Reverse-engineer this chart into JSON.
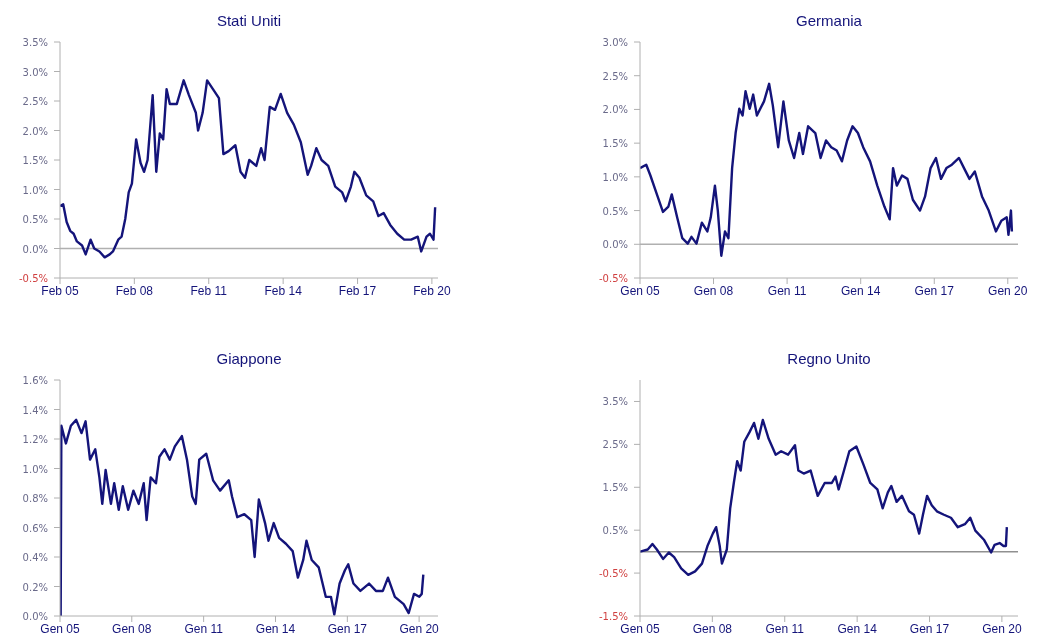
{
  "chart_data": [
    {
      "type": "line",
      "title": "Stati Uniti",
      "color": "#14147a",
      "marker": "none",
      "line_style": "solid",
      "grid": false,
      "x": [
        "2005-02-01",
        "2005-03-20",
        "2005-05-10",
        "2005-07-01",
        "2005-08-21",
        "2005-10-08",
        "2005-12-23",
        "2006-02-14",
        "2006-04-28",
        "2006-06-20",
        "2006-09-05",
        "2006-11-21",
        "2007-02-03",
        "2007-03-23",
        "2007-06-09",
        "2007-07-28",
        "2007-09-20",
        "2007-11-10",
        "2007-12-27",
        "2008-02-28",
        "2008-05-03",
        "2008-06-23",
        "2008-08-14",
        "2008-10-28",
        "2008-12-20",
        "2009-02-10",
        "2009-04-01",
        "2009-05-21",
        "2009-07-08",
        "2009-10-19",
        "2010-01-28",
        "2010-04-15",
        "2010-07-26",
        "2010-08-28",
        "2010-11-03",
        "2011-01-08",
        "2011-04-04",
        "2011-07-01",
        "2011-09-05",
        "2011-11-21",
        "2012-02-28",
        "2012-05-14",
        "2012-07-19",
        "2012-09-20",
        "2013-01-01",
        "2013-03-13",
        "2013-05-03",
        "2013-07-19",
        "2013-10-04",
        "2013-12-27",
        "2014-04-01",
        "2014-07-08",
        "2014-10-19",
        "2015-01-28",
        "2015-03-20",
        "2015-06-05",
        "2015-08-21",
        "2015-11-28",
        "2016-03-09",
        "2016-06-20",
        "2016-08-10",
        "2016-10-26",
        "2016-12-16",
        "2017-02-28",
        "2017-06-09",
        "2017-09-20",
        "2017-12-05",
        "2018-02-21",
        "2018-05-28",
        "2018-09-09",
        "2018-12-20",
        "2019-04-01",
        "2019-07-08",
        "2019-08-28",
        "2019-11-14",
        "2020-01-04",
        "2020-02-25",
        "2020-03-20"
      ],
      "values": [
        0.72,
        0.75,
        0.45,
        0.3,
        0.25,
        0.12,
        0.05,
        -0.1,
        0.15,
        0.0,
        -0.05,
        -0.15,
        -0.1,
        -0.05,
        0.15,
        0.2,
        0.5,
        0.95,
        1.1,
        1.85,
        1.45,
        1.3,
        1.5,
        2.6,
        1.3,
        1.95,
        1.85,
        2.7,
        2.45,
        2.45,
        2.85,
        2.6,
        2.3,
        2.0,
        2.3,
        2.85,
        2.7,
        2.55,
        1.6,
        1.65,
        1.75,
        1.3,
        1.2,
        1.5,
        1.4,
        1.7,
        1.5,
        2.4,
        2.35,
        2.62,
        2.3,
        2.1,
        1.8,
        1.25,
        1.4,
        1.7,
        1.5,
        1.4,
        1.05,
        0.95,
        0.8,
        1.05,
        1.3,
        1.2,
        0.9,
        0.8,
        0.55,
        0.6,
        0.4,
        0.25,
        0.15,
        0.15,
        0.2,
        -0.05,
        0.2,
        0.25,
        0.15,
        0.7
      ],
      "xlim": [
        "2005-02-01",
        "2020-05-01"
      ],
      "xticks": [
        {
          "value": "2005-02-01",
          "label": "Feb 05"
        },
        {
          "value": "2008-02-01",
          "label": "Feb 08"
        },
        {
          "value": "2011-02-01",
          "label": "Feb 11"
        },
        {
          "value": "2014-02-01",
          "label": "Feb 14"
        },
        {
          "value": "2017-02-01",
          "label": "Feb 17"
        },
        {
          "value": "2020-02-01",
          "label": "Feb 20"
        }
      ],
      "ylim": [
        -0.5,
        3.5
      ],
      "yticks": [
        {
          "value": -0.5,
          "label": "-0.5%"
        },
        {
          "value": 0,
          "label": "0.0%"
        },
        {
          "value": 0.5,
          "label": "0.5%"
        },
        {
          "value": 1,
          "label": "1.0%"
        },
        {
          "value": 1.5,
          "label": "1.5%"
        },
        {
          "value": 2,
          "label": "2.0%"
        },
        {
          "value": 2.5,
          "label": "2.5%"
        },
        {
          "value": 3,
          "label": "3.0%"
        },
        {
          "value": 3.5,
          "label": "3.5%"
        }
      ],
      "ref_lines": [
        {
          "axis": "y",
          "value": 0,
          "color": "#b0b0b0"
        }
      ]
    },
    {
      "type": "line",
      "title": "Germania",
      "color": "#14147a",
      "marker": "none",
      "line_style": "solid",
      "grid": false,
      "x": [
        "2005-01-01",
        "2005-04-04",
        "2005-06-05",
        "2005-09-20",
        "2005-12-09",
        "2006-02-28",
        "2006-04-19",
        "2006-07-08",
        "2006-09-23",
        "2006-12-13",
        "2007-02-07",
        "2007-04-22",
        "2007-07-11",
        "2007-10-01",
        "2007-11-21",
        "2008-01-22",
        "2008-03-05",
        "2008-04-26",
        "2008-06-20",
        "2008-08-10",
        "2008-10-04",
        "2008-11-25",
        "2009-01-19",
        "2009-03-09",
        "2009-04-22",
        "2009-06-23",
        "2009-08-14",
        "2009-10-08",
        "2010-01-22",
        "2010-04-08",
        "2010-06-02",
        "2010-08-21",
        "2010-11-07",
        "2011-01-26",
        "2011-04-15",
        "2011-07-01",
        "2011-08-25",
        "2011-11-10",
        "2012-02-25",
        "2012-05-14",
        "2012-08-03",
        "2012-10-19",
        "2013-01-08",
        "2013-03-27",
        "2013-06-13",
        "2013-09-02",
        "2013-11-21",
        "2014-02-07",
        "2014-05-21",
        "2014-09-05",
        "2014-12-20",
        "2015-03-09",
        "2015-04-28",
        "2015-06-23",
        "2015-09-09",
        "2015-11-28",
        "2016-02-17",
        "2016-06-02",
        "2016-08-17",
        "2016-11-07",
        "2017-01-26",
        "2017-04-11",
        "2017-07-01",
        "2017-09-20",
        "2018-01-04",
        "2018-03-20",
        "2018-06-09",
        "2018-08-28",
        "2018-12-13",
        "2019-03-23",
        "2019-07-08",
        "2019-09-27",
        "2019-12-16",
        "2020-01-11",
        "2020-02-17",
        "2020-03-02"
      ],
      "values": [
        1.13,
        1.18,
        1.02,
        0.71,
        0.48,
        0.56,
        0.74,
        0.4,
        0.09,
        0.01,
        0.11,
        0.01,
        0.32,
        0.19,
        0.4,
        0.87,
        0.5,
        -0.17,
        0.19,
        0.09,
        1.13,
        1.65,
        2.01,
        1.91,
        2.27,
        2.01,
        2.22,
        1.91,
        2.12,
        2.38,
        2.06,
        1.44,
        2.12,
        1.54,
        1.28,
        1.65,
        1.34,
        1.75,
        1.65,
        1.28,
        1.54,
        1.44,
        1.39,
        1.23,
        1.54,
        1.75,
        1.65,
        1.44,
        1.23,
        0.87,
        0.56,
        0.37,
        1.13,
        0.87,
        1.02,
        0.97,
        0.66,
        0.5,
        0.71,
        1.13,
        1.28,
        0.97,
        1.13,
        1.18,
        1.28,
        1.13,
        0.97,
        1.08,
        0.71,
        0.5,
        0.19,
        0.35,
        0.4,
        0.14,
        0.5,
        0.19
      ],
      "xlim": [
        "2005-01-01",
        "2020-06-01"
      ],
      "xticks": [
        {
          "value": "2005-01-01",
          "label": "Gen 05"
        },
        {
          "value": "2008-01-01",
          "label": "Gen 08"
        },
        {
          "value": "2011-01-01",
          "label": "Gen 11"
        },
        {
          "value": "2014-01-01",
          "label": "Gen 14"
        },
        {
          "value": "2017-01-01",
          "label": "Gen 17"
        },
        {
          "value": "2020-01-01",
          "label": "Gen 20"
        }
      ],
      "ylim": [
        -0.5,
        3.0
      ],
      "yticks": [
        {
          "value": -0.5,
          "label": "-0.5%"
        },
        {
          "value": 0,
          "label": "0.0%"
        },
        {
          "value": 0.5,
          "label": "0.5%"
        },
        {
          "value": 1,
          "label": "1.0%"
        },
        {
          "value": 1.5,
          "label": "1.5%"
        },
        {
          "value": 2,
          "label": "2.0%"
        },
        {
          "value": 2.5,
          "label": "2.5%"
        },
        {
          "value": 3,
          "label": "3.0%"
        }
      ],
      "ref_lines": [
        {
          "axis": "y",
          "value": 0,
          "color": "#b0b0b0"
        }
      ]
    },
    {
      "type": "line",
      "title": "Giappone",
      "color": "#14147a",
      "marker": "none",
      "line_style": "solid",
      "grid": false,
      "x": [
        "2005-01-11",
        "2005-01-22",
        "2005-04-01",
        "2005-06-16",
        "2005-09-05",
        "2005-11-25",
        "2006-01-26",
        "2006-04-04",
        "2006-06-23",
        "2006-08-25",
        "2006-10-08",
        "2006-11-28",
        "2007-02-17",
        "2007-04-08",
        "2007-06-16",
        "2007-08-17",
        "2007-11-07",
        "2008-01-26",
        "2008-04-15",
        "2008-07-01",
        "2008-08-14",
        "2008-10-15",
        "2009-01-04",
        "2009-02-25",
        "2009-05-14",
        "2009-08-03",
        "2009-10-19",
        "2010-02-03",
        "2010-04-22",
        "2010-07-11",
        "2010-09-02",
        "2010-10-26",
        "2011-02-10",
        "2011-05-25",
        "2011-09-09",
        "2012-01-19",
        "2012-03-09",
        "2012-05-28",
        "2012-09-13",
        "2012-12-27",
        "2013-02-17",
        "2013-04-22",
        "2013-07-26",
        "2013-09-16",
        "2013-12-05",
        "2014-02-25",
        "2014-06-09",
        "2014-09-20",
        "2014-12-09",
        "2015-02-28",
        "2015-04-19",
        "2015-07-08",
        "2015-10-22",
        "2016-02-07",
        "2016-04-26",
        "2016-06-16",
        "2016-09-05",
        "2016-11-25",
        "2017-01-15",
        "2017-04-04",
        "2017-07-19",
        "2017-11-28",
        "2018-03-13",
        "2018-06-27",
        "2018-09-13",
        "2018-12-27",
        "2019-05-10",
        "2019-07-26",
        "2019-10-15",
        "2020-01-04",
        "2020-02-10",
        "2020-03-05"
      ],
      "values": [
        0.0,
        1.29,
        1.17,
        1.29,
        1.33,
        1.24,
        1.32,
        1.06,
        1.13,
        0.94,
        0.76,
        0.99,
        0.76,
        0.9,
        0.72,
        0.88,
        0.72,
        0.85,
        0.76,
        0.9,
        0.65,
        0.94,
        0.9,
        1.08,
        1.13,
        1.06,
        1.15,
        1.22,
        1.06,
        0.81,
        0.76,
        1.06,
        1.1,
        0.92,
        0.85,
        0.92,
        0.81,
        0.67,
        0.69,
        0.65,
        0.4,
        0.79,
        0.63,
        0.51,
        0.63,
        0.53,
        0.49,
        0.44,
        0.26,
        0.38,
        0.51,
        0.38,
        0.33,
        0.13,
        0.13,
        0.01,
        0.22,
        0.31,
        0.35,
        0.22,
        0.17,
        0.22,
        0.17,
        0.17,
        0.26,
        0.13,
        0.08,
        0.02,
        0.15,
        0.13,
        0.15,
        0.28
      ],
      "xlim": [
        "2005-01-01",
        "2020-10-15"
      ],
      "xticks": [
        {
          "value": "2005-01-01",
          "label": "Gen 05"
        },
        {
          "value": "2008-01-01",
          "label": "Gen 08"
        },
        {
          "value": "2011-01-01",
          "label": "Gen 11"
        },
        {
          "value": "2014-01-01",
          "label": "Gen 14"
        },
        {
          "value": "2017-01-01",
          "label": "Gen 17"
        },
        {
          "value": "2020-01-01",
          "label": "Gen 20"
        }
      ],
      "ylim": [
        0,
        1.6
      ],
      "yticks": [
        {
          "value": 0,
          "label": "0.0%"
        },
        {
          "value": 0.2,
          "label": "0.2%"
        },
        {
          "value": 0.4,
          "label": "0.4%"
        },
        {
          "value": 0.6,
          "label": "0.6%"
        },
        {
          "value": 0.8,
          "label": "0.8%"
        },
        {
          "value": 1,
          "label": "1.0%"
        },
        {
          "value": 1.2,
          "label": "1.2%"
        },
        {
          "value": 1.4,
          "label": "1.4%"
        },
        {
          "value": 1.6,
          "label": "1.6%"
        }
      ]
    },
    {
      "type": "line",
      "title": "Regno Unito",
      "color": "#14147a",
      "marker": "none",
      "line_style": "solid",
      "grid": false,
      "x": [
        "2005-01-01",
        "2005-04-28",
        "2005-07-08",
        "2005-09-13",
        "2005-12-16",
        "2006-03-13",
        "2006-06-02",
        "2006-09-16",
        "2007-01-01",
        "2007-04-15",
        "2007-07-28",
        "2007-10-19",
        "2008-01-08",
        "2008-02-28",
        "2008-04-22",
        "2008-05-25",
        "2008-08-07",
        "2008-09-27",
        "2008-11-21",
        "2009-01-11",
        "2009-03-05",
        "2009-04-28",
        "2009-07-15",
        "2009-09-23",
        "2009-11-28",
        "2010-02-03",
        "2010-05-03",
        "2010-08-17",
        "2010-11-07",
        "2011-02-21",
        "2011-06-05",
        "2011-07-26",
        "2011-10-15",
        "2012-01-28",
        "2012-05-14",
        "2012-08-28",
        "2012-12-13",
        "2013-02-07",
        "2013-03-27",
        "2013-06-16",
        "2013-09-05",
        "2013-12-20",
        "2014-04-04",
        "2014-07-19",
        "2014-11-03",
        "2015-01-22",
        "2015-04-11",
        "2015-06-02",
        "2015-08-21",
        "2015-11-10",
        "2016-02-25",
        "2016-05-10",
        "2016-07-28",
        "2016-09-23",
        "2016-11-25",
        "2017-02-03",
        "2017-04-22",
        "2017-08-07",
        "2017-11-21",
        "2018-03-05",
        "2018-06-20",
        "2018-09-09",
        "2018-11-25",
        "2019-04-08",
        "2019-07-22",
        "2019-09-13",
        "2019-11-28",
        "2020-01-26",
        "2020-03-02",
        "2020-03-16"
      ],
      "values": [
        0.0,
        0.05,
        0.18,
        0.05,
        -0.17,
        -0.02,
        -0.13,
        -0.39,
        -0.54,
        -0.46,
        -0.28,
        0.13,
        0.42,
        0.57,
        0.13,
        -0.28,
        0.05,
        1.01,
        1.6,
        2.11,
        1.89,
        2.56,
        2.78,
        3.0,
        2.63,
        3.07,
        2.63,
        2.26,
        2.34,
        2.26,
        2.48,
        1.89,
        1.82,
        1.89,
        1.3,
        1.6,
        1.6,
        1.75,
        1.45,
        1.89,
        2.34,
        2.45,
        2.04,
        1.6,
        1.45,
        1.01,
        1.38,
        1.53,
        1.16,
        1.3,
        0.94,
        0.86,
        0.42,
        0.86,
        1.3,
        1.08,
        0.94,
        0.86,
        0.79,
        0.57,
        0.64,
        0.79,
        0.49,
        0.27,
        -0.02,
        0.16,
        0.2,
        0.13,
        0.13,
        0.57
      ],
      "xlim": [
        "2005-01-01",
        "2020-09-01"
      ],
      "xticks": [
        {
          "value": "2005-01-01",
          "label": "Gen 05"
        },
        {
          "value": "2008-01-01",
          "label": "Gen 08"
        },
        {
          "value": "2011-01-01",
          "label": "Gen 11"
        },
        {
          "value": "2014-01-01",
          "label": "Gen 14"
        },
        {
          "value": "2017-01-01",
          "label": "Gen 17"
        },
        {
          "value": "2020-01-01",
          "label": "Gen 20"
        }
      ],
      "ylim": [
        -1.5,
        4.0
      ],
      "yticks": [
        {
          "value": -1.5,
          "label": "-1.5%"
        },
        {
          "value": -0.5,
          "label": "-0.5%"
        },
        {
          "value": 0.5,
          "label": "0.5%"
        },
        {
          "value": 1.5,
          "label": "1.5%"
        },
        {
          "value": 2.5,
          "label": "2.5%"
        },
        {
          "value": 3.5,
          "label": "3.5%"
        }
      ],
      "ref_lines": [
        {
          "axis": "y",
          "value": 0,
          "color": "#909090"
        }
      ]
    }
  ]
}
